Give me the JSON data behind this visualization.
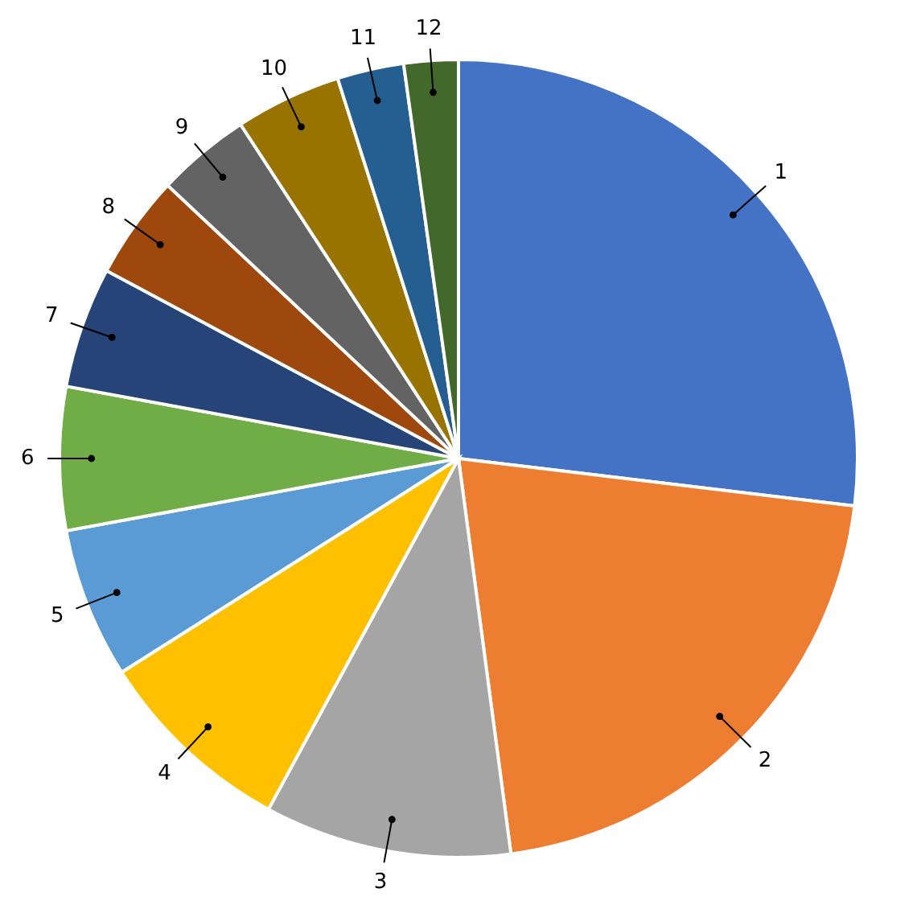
{
  "chart_data": {
    "type": "pie",
    "categories": [
      "1",
      "2",
      "3",
      "4",
      "5",
      "6",
      "7",
      "8",
      "9",
      "10",
      "11",
      "12"
    ],
    "values": [
      26.9,
      21.0,
      10.0,
      8.1,
      6.1,
      5.8,
      4.9,
      4.2,
      3.8,
      4.3,
      2.7,
      2.2
    ],
    "colors": [
      "#4472c4",
      "#ed7d31",
      "#a5a5a5",
      "#ffc000",
      "#5b9bd5",
      "#70ad47",
      "#264478",
      "#9e480e",
      "#636363",
      "#997300",
      "#255e91",
      "#43682b"
    ]
  }
}
